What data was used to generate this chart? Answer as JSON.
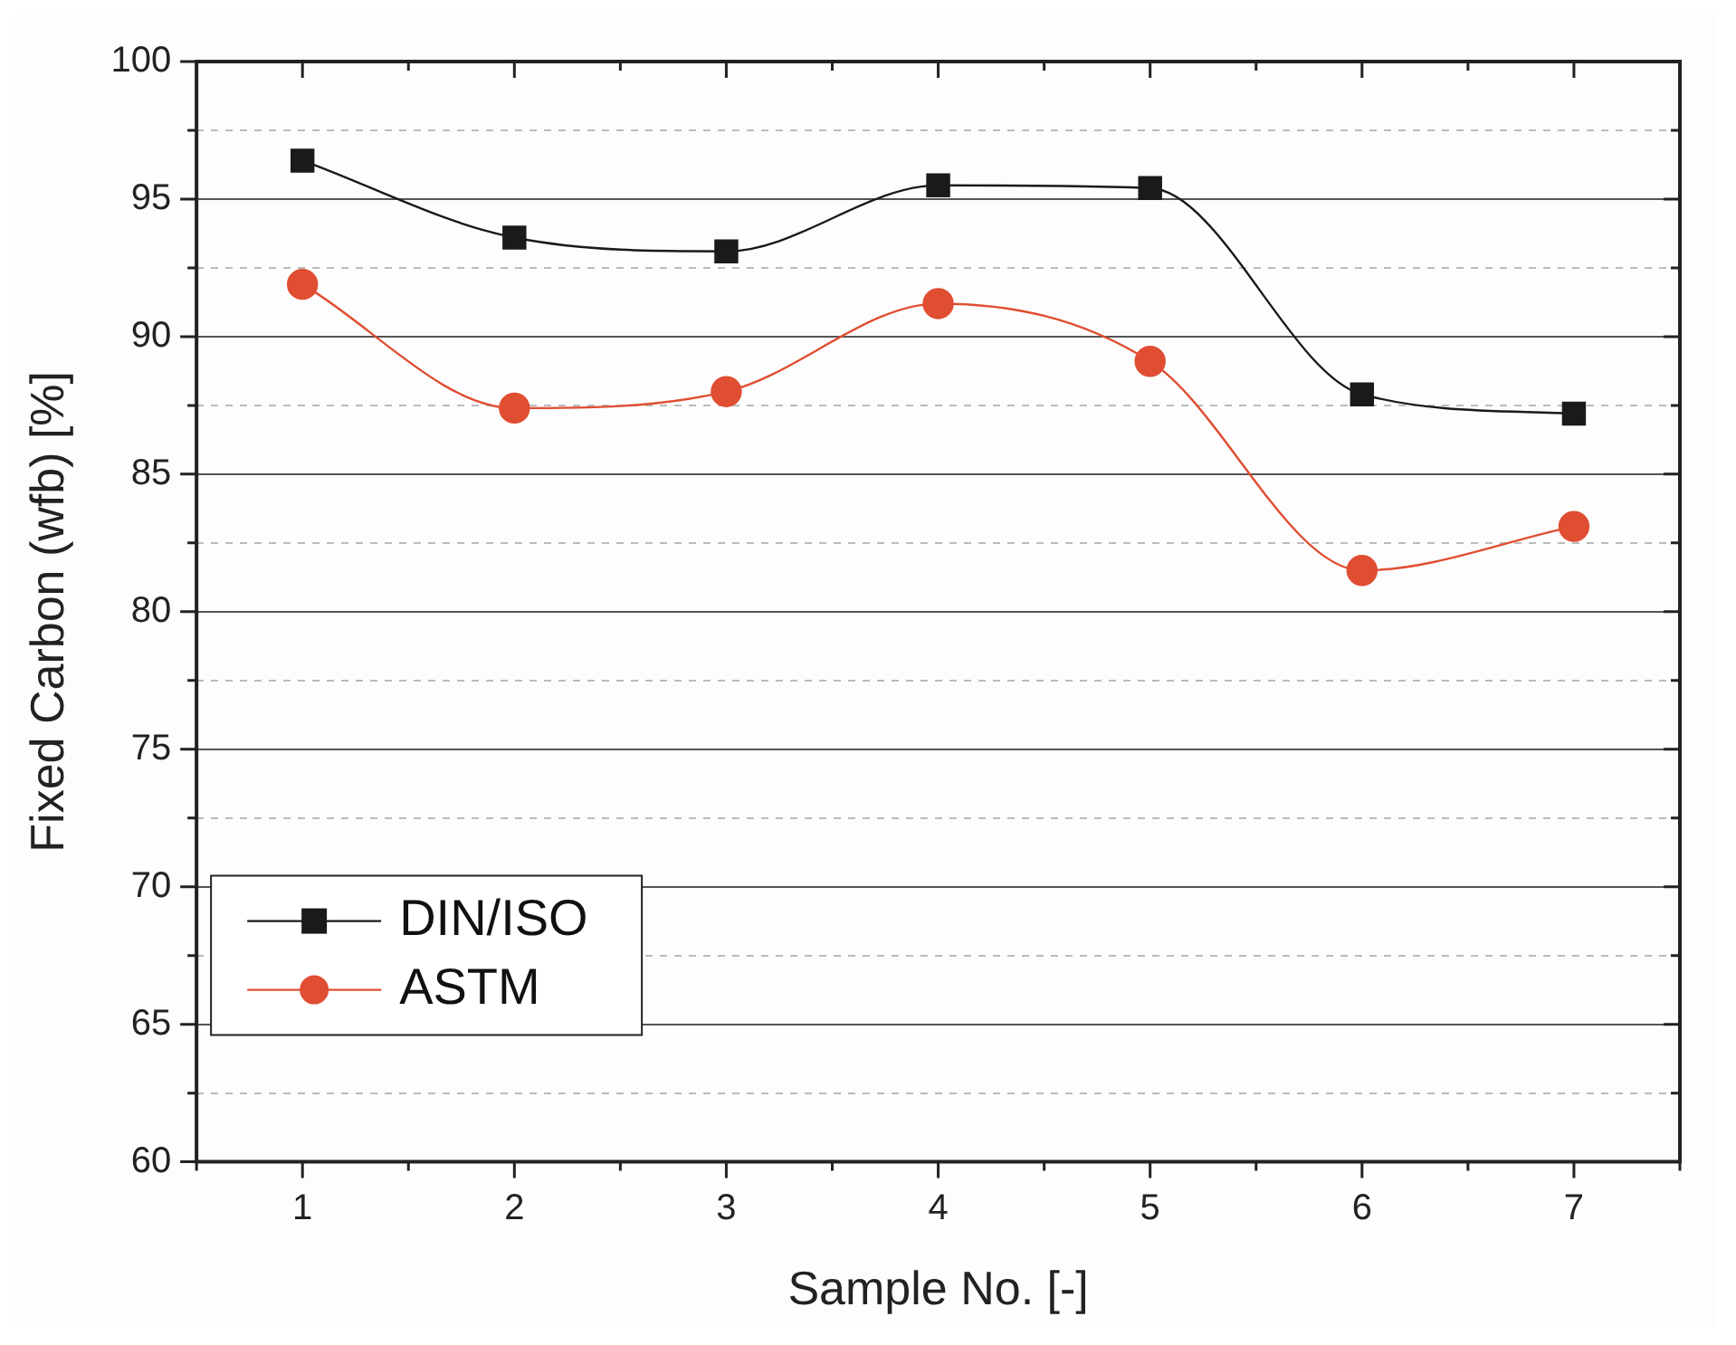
{
  "chart_data": {
    "type": "line",
    "xlabel": "Sample No. [-]",
    "ylabel": "Fixed Carbon (wfb) [%]",
    "x": [
      1,
      2,
      3,
      4,
      5,
      6,
      7
    ],
    "xlim": [
      0.5,
      7.5
    ],
    "xticks": [
      1,
      2,
      3,
      4,
      5,
      6,
      7
    ],
    "ylim": [
      60,
      100
    ],
    "yticks": [
      60,
      {
        "value": 62.5,
        "label": null
      },
      65,
      {
        "value": 67.5,
        "label": null
      },
      70,
      {
        "value": 72.5,
        "label": null
      },
      75,
      {
        "value": 77.5,
        "label": null
      },
      80,
      {
        "value": 82.5,
        "label": null
      },
      85,
      {
        "value": 87.5,
        "label": null
      },
      90,
      {
        "value": 92.5,
        "label": null
      },
      95,
      {
        "value": 97.5,
        "label": null
      },
      100
    ],
    "grid": "y",
    "legend": "bottom left",
    "series": [
      {
        "name": "DIN/ISO",
        "color": "#1a1a1a",
        "marker": "square",
        "values": [
          96.4,
          93.6,
          93.1,
          95.5,
          95.4,
          87.9,
          87.2
        ]
      },
      {
        "name": "ASTM",
        "color": "#e04e32",
        "marker": "circle",
        "values": [
          91.9,
          87.4,
          88.0,
          91.2,
          89.1,
          81.5,
          83.1
        ]
      }
    ]
  }
}
